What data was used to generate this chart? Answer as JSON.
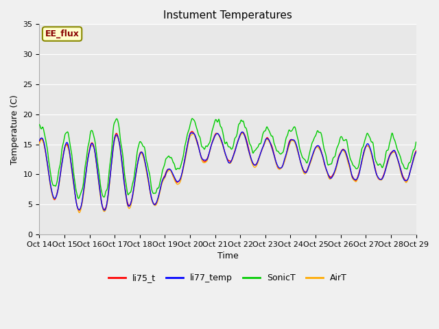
{
  "title": "Instument Temperatures",
  "xlabel": "Time",
  "ylabel": "Temperature (C)",
  "ylim": [
    0,
    35
  ],
  "xlim_hours": 360,
  "bg_color": "#f0f0f0",
  "plot_bg_color": "#e8e8e8",
  "grid_color": "#d0d0d0",
  "xtick_labels": [
    "Oct 14",
    "Oct 15",
    "Oct 16",
    "Oct 17",
    "Oct 18",
    "Oct 19",
    "Oct 20",
    "Oct 21",
    "Oct 22",
    "Oct 23",
    "Oct 24",
    "Oct 25",
    "Oct 26",
    "Oct 27",
    "Oct 28",
    "Oct 29"
  ],
  "ytick_vals": [
    0,
    5,
    10,
    15,
    20,
    25,
    30,
    35
  ],
  "annotation_text": "EE_flux",
  "annotation_facecolor": "#ffffcc",
  "annotation_edgecolor": "#888800",
  "annotation_textcolor": "#880000",
  "series_colors": [
    "#ff0000",
    "#0000ff",
    "#00cc00",
    "#ffaa00"
  ],
  "series_names": [
    "li75_t",
    "li77_temp",
    "SonicT",
    "AirT"
  ],
  "line_width": 1.0,
  "title_fontsize": 11,
  "axis_fontsize": 9,
  "tick_fontsize": 8
}
